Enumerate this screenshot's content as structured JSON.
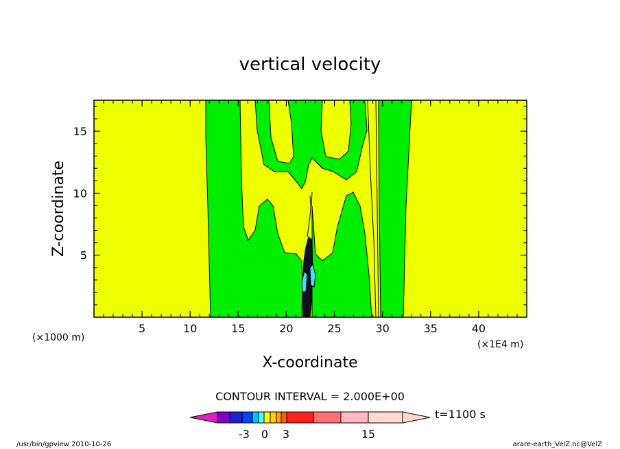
{
  "chart_data": {
    "type": "heatmap",
    "title": "vertical velocity",
    "xlabel": "X-coordinate",
    "ylabel": "Z-coordinate",
    "x_unit_note": "(×1E4 m)",
    "y_unit_note": "(×1000 m)",
    "xlim": [
      0,
      45
    ],
    "ylim": [
      0,
      17.5
    ],
    "xticks": [
      5,
      10,
      15,
      20,
      25,
      30,
      35,
      40
    ],
    "yticks": [
      5,
      10,
      15
    ],
    "xtick_labels": [
      "5",
      "10",
      "15",
      "20",
      "25",
      "30",
      "35",
      "40"
    ],
    "ytick_labels": [
      "5",
      "10",
      "15"
    ],
    "contour_interval": "CONTOUR INTERVAL = 2.000E+00",
    "time_label": "t=1100 s",
    "colorbar": {
      "levels": [
        "-3",
        "0",
        "3",
        "15"
      ],
      "colors": [
        "#e020c0",
        "#8000c0",
        "#2020d0",
        "#0040ff",
        "#00c0ff",
        "#40ffff",
        "#ffff00",
        "#ffd000",
        "#ffa000",
        "#ff6000",
        "#ff2020",
        "#ff7070",
        "#ffb8c0",
        "#ffd8d0"
      ]
    },
    "fill_colors": {
      "background": "#eeff00",
      "positive_low": "#00ee00",
      "negative": "#40e0ff",
      "strong": "#101020"
    }
  },
  "footer": {
    "left": "/usr/bin/gpview   2010-10-26",
    "right": "arare-earth_VelZ.nc@VelZ"
  }
}
